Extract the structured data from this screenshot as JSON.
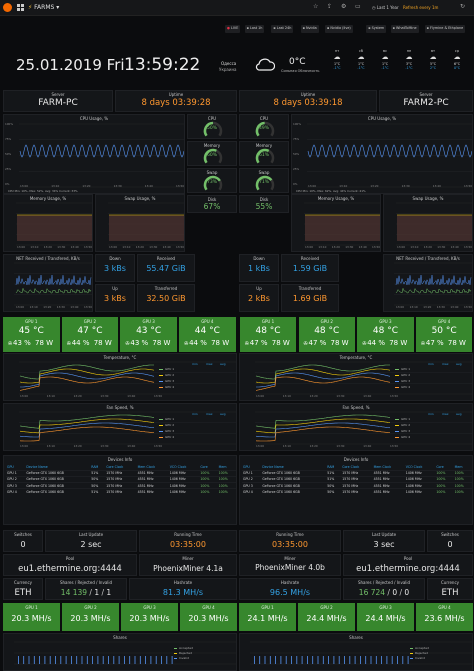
{
  "topbar": {
    "breadcrumb": "FARMS",
    "range": "Last 1 Year",
    "refresh": "Refresh every 1m"
  },
  "tabs": [
    "LIVE",
    "Last 1h",
    "Last 24h",
    "Nvidia",
    "Nvidia (live)",
    "System",
    "WhatToMine",
    "Flymine & Ethplane"
  ],
  "header": {
    "date": "25.01.2019 Fri",
    "time": "13:59:22",
    "city": "Одесса",
    "country": "Украина",
    "temp": "0°C",
    "weather_desc": "Сильная Облачность",
    "forecast": [
      {
        "day": "пт",
        "hi": "1°C",
        "lo": "-1°C"
      },
      {
        "day": "сб",
        "hi": "1°C",
        "lo": "-1°C"
      },
      {
        "day": "вс",
        "hi": "1°C",
        "lo": "-1°C"
      },
      {
        "day": "пн",
        "hi": "3°C",
        "lo": "-1°C"
      },
      {
        "day": "вт",
        "hi": "5°C",
        "lo": "2°C"
      },
      {
        "day": "ср",
        "hi": "6°C",
        "lo": "0°C"
      }
    ]
  },
  "farms": [
    {
      "server_label": "Server",
      "server": "FARM-PC",
      "uptime_label": "Uptime",
      "uptime": "8 days 03:39:28",
      "cpu_title": "CPU Usage, %",
      "cpu_legend": "CPU Min: 10%, Max: 52%, Avg: 34% Current: 33%",
      "cpu_yticks": [
        "100%",
        "75%",
        "50%",
        "25%",
        "0%"
      ],
      "gauges": [
        {
          "label": "CPU",
          "value": "50%",
          "fill": 0.5
        },
        {
          "label": "Memory",
          "value": "60%",
          "fill": 0.6
        },
        {
          "label": "Swap",
          "value": "73%",
          "fill": 0.73
        }
      ],
      "disk_label": "Disk",
      "disk": "67%",
      "mem_title": "Memory Usage, %",
      "swap_title": "Swap Usage, %",
      "net_title": "NET Received / Transfered, KB/s",
      "down_label": "Down",
      "down": "3 kBs",
      "up_label": "Up",
      "up": "3 kBs",
      "received_label": "Received",
      "received": "55.47 GiB",
      "transferred_label": "Transferred",
      "transferred": "32.50 GiB"
    },
    {
      "server_label": "Server",
      "server": "FARM2-PC",
      "uptime_label": "Uptime",
      "uptime": "8 days 03:39:18",
      "cpu_title": "CPU Usage, %",
      "cpu_legend": "CPU Min: 10%, Max: 62%, Avg: 44% Current: 41%",
      "cpu_yticks": [
        "100%",
        "75%",
        "50%",
        "25%",
        "0%"
      ],
      "gauges": [
        {
          "label": "CPU",
          "value": "49%",
          "fill": 0.49
        },
        {
          "label": "Memory",
          "value": "61%",
          "fill": 0.61
        },
        {
          "label": "Swap",
          "value": "71%",
          "fill": 0.71
        }
      ],
      "disk_label": "Disk",
      "disk": "55%",
      "mem_title": "Memory Usage, %",
      "swap_title": "Swap Usage, %",
      "net_title": "NET Received / Transfered, KB/s",
      "down_label": "Down",
      "down": "1 kBs",
      "up_label": "Up",
      "up": "2 kBs",
      "received_label": "Received",
      "received": "1.59 GiB",
      "transferred_label": "Transferred",
      "transferred": "1.69 GiB"
    }
  ],
  "gpus": [
    {
      "label": "GPU 1",
      "temp": "45 °C",
      "fan": "43 %",
      "power": "78 W"
    },
    {
      "label": "GPU 2",
      "temp": "47 °C",
      "fan": "44 %",
      "power": "78 W"
    },
    {
      "label": "GPU 3",
      "temp": "43 °C",
      "fan": "43 %",
      "power": "78 W"
    },
    {
      "label": "GPU 4",
      "temp": "44 °C",
      "fan": "44 %",
      "power": "78 W"
    },
    {
      "label": "GPU 1",
      "temp": "48 °C",
      "fan": "47 %",
      "power": "78 W"
    },
    {
      "label": "GPU 2",
      "temp": "48 °C",
      "fan": "47 %",
      "power": "78 W"
    },
    {
      "label": "GPU 3",
      "temp": "48 °C",
      "fan": "44 %",
      "power": "78 W"
    },
    {
      "label": "GPU 4",
      "temp": "50 °C",
      "fan": "47 %",
      "power": "78 W"
    }
  ],
  "temp_title": "Temperature, °C",
  "fan_title": "Fan Speed, %",
  "legend_head": [
    "min",
    "max",
    "avg"
  ],
  "legend_rows": [
    "GPU 1",
    "GPU 2",
    "GPU 3",
    "GPU 4"
  ],
  "devices_title": "Devices Info",
  "device_cols": [
    "GPU",
    "Device Name",
    "RAM",
    "Core Clock",
    "Mem Clock",
    "VCO Clock",
    "Core",
    "Mem"
  ],
  "devices": [
    [
      [
        "GPU 1",
        "GeForce GTX 1060 6GB",
        "51%",
        "1570 MHz",
        "4551 MHz",
        "1406 MHz",
        "100%",
        "100%"
      ],
      [
        "GPU 2",
        "GeForce GTX 1060 6GB",
        "50%",
        "1570 MHz",
        "4551 MHz",
        "1406 MHz",
        "100%",
        "100%"
      ],
      [
        "GPU 3",
        "GeForce GTX 1060 6GB",
        "50%",
        "1570 MHz",
        "4551 MHz",
        "1406 MHz",
        "100%",
        "100%"
      ],
      [
        "GPU 4",
        "GeForce GTX 1060 6GB",
        "51%",
        "1570 MHz",
        "4551 MHz",
        "1406 MHz",
        "100%",
        "100%"
      ]
    ],
    [
      [
        "GPU 1",
        "GeForce GTX 1060 6GB",
        "51%",
        "1570 MHz",
        "4551 MHz",
        "1406 MHz",
        "100%",
        "100%"
      ],
      [
        "GPU 2",
        "GeForce GTX 1060 6GB",
        "51%",
        "1570 MHz",
        "4551 MHz",
        "1406 MHz",
        "100%",
        "100%"
      ],
      [
        "GPU 3",
        "GeForce GTX 1060 6GB",
        "50%",
        "1570 MHz",
        "4551 MHz",
        "1406 MHz",
        "100%",
        "100%"
      ],
      [
        "GPU 4",
        "GeForce GTX 1060 6GB",
        "50%",
        "1570 MHz",
        "4551 MHz",
        "1406 MHz",
        "100%",
        "100%"
      ]
    ]
  ],
  "miners": [
    {
      "switches_label": "Switches",
      "switches": "0",
      "lastupd_label": "Last Update",
      "lastupd": "2 sec",
      "running_label": "Running Time",
      "running": "03:35:00",
      "pool_label": "Pool",
      "pool": "eu1.ethermine.org:4444",
      "miner_label": "Miner",
      "miner": "PhoenixMiner 4.1a",
      "currency_label": "Currency",
      "currency": "ETH",
      "shares_label": "Shares / Rejected / Invalid",
      "shares_a": "14 139",
      "shares_b": "1",
      "shares_c": "1",
      "hash_label": "Hashrate",
      "hash": "81.3 MH/s",
      "gpuhash": [
        {
          "label": "GPU 1",
          "value": "20.3 MH/s"
        },
        {
          "label": "GPU 2",
          "value": "20.3 MH/s"
        },
        {
          "label": "GPU 3",
          "value": "20.3 MH/s"
        },
        {
          "label": "GPU 4",
          "value": "20.3 MH/s"
        }
      ],
      "shares_title": "Shares"
    },
    {
      "switches_label": "Switches",
      "switches": "0",
      "lastupd_label": "Last Update",
      "lastupd": "3 sec",
      "running_label": "Running Time",
      "running": "03:35:00",
      "pool_label": "Pool",
      "pool": "eu1.ethermine.org:4444",
      "miner_label": "Miner",
      "miner": "PhoenixMiner 4.0b",
      "currency_label": "Currency",
      "currency": "ETH",
      "shares_label": "Shares / Rejected / Invalid",
      "shares_a": "16 724",
      "shares_b": "0",
      "shares_c": "0",
      "hash_label": "Hashrate",
      "hash": "96.5 MH/s",
      "gpuhash": [
        {
          "label": "GPU 1",
          "value": "24.1 MH/s"
        },
        {
          "label": "GPU 2",
          "value": "24.4 MH/s"
        },
        {
          "label": "GPU 3",
          "value": "24.4 MH/s"
        },
        {
          "label": "GPU 4",
          "value": "23.6 MH/s"
        }
      ],
      "shares_title": "Shares"
    }
  ],
  "share_legend": [
    "Accepted",
    "Rejected",
    "Invalid"
  ],
  "time_ticks": [
    "13:00",
    "13:10",
    "13:20",
    "13:30",
    "13:40",
    "13:50"
  ],
  "colors": {
    "green": "#37872d",
    "orange": "#ff9830",
    "blue": "#5794f2",
    "bg": "#0b0c0e",
    "panel": "#141619"
  }
}
